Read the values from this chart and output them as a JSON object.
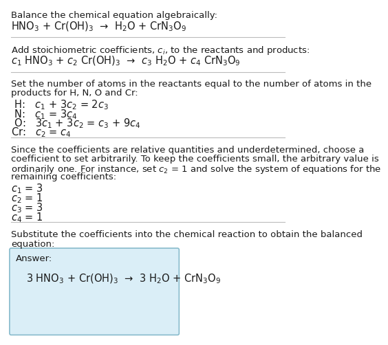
{
  "title_line1": "Balance the chemical equation algebraically:",
  "title_line2": "HNO$_3$ + Cr(OH)$_3$  →  H$_2$O + CrN$_3$O$_9$",
  "sec2_header": "Add stoichiometric coefficients, $c_i$, to the reactants and products:",
  "sec2_eq": "$c_1$ HNO$_3$ + $c_2$ Cr(OH)$_3$  →  $c_3$ H$_2$O + $c_4$ CrN$_3$O$_9$",
  "sec3_header1": "Set the number of atoms in the reactants equal to the number of atoms in the",
  "sec3_header2": "products for H, N, O and Cr:",
  "sec3_H": " H:   $c_1$ + 3$c_2$ = 2$c_3$",
  "sec3_N": " N:   $c_1$ = 3$c_4$",
  "sec3_O": " O:   3$c_1$ + 3$c_2$ = $c_3$ + 9$c_4$",
  "sec3_Cr": "Cr:   $c_2$ = $c_4$",
  "sec4_t1": "Since the coefficients are relative quantities and underdetermined, choose a",
  "sec4_t2": "coefficient to set arbitrarily. To keep the coefficients small, the arbitrary value is",
  "sec4_t3": "ordinarily one. For instance, set $c_2$ = 1 and solve the system of equations for the",
  "sec4_t4": "remaining coefficients:",
  "sec4_c1": "$c_1$ = 3",
  "sec4_c2": "$c_2$ = 1",
  "sec4_c3": "$c_3$ = 3",
  "sec4_c4": "$c_4$ = 1",
  "sec5_h1": "Substitute the coefficients into the chemical reaction to obtain the balanced",
  "sec5_h2": "equation:",
  "ans_label": "Answer:",
  "ans_eq": "3 HNO$_3$ + Cr(OH)$_3$  →  3 H$_2$O + CrN$_3$O$_9$",
  "bg_color": "#ffffff",
  "text_color": "#1a1a1a",
  "sep_color": "#bbbbbb",
  "ans_box_face": "#daeef7",
  "ans_box_edge": "#88bbcc",
  "fs_body": 9.5,
  "fs_eq": 10.5
}
